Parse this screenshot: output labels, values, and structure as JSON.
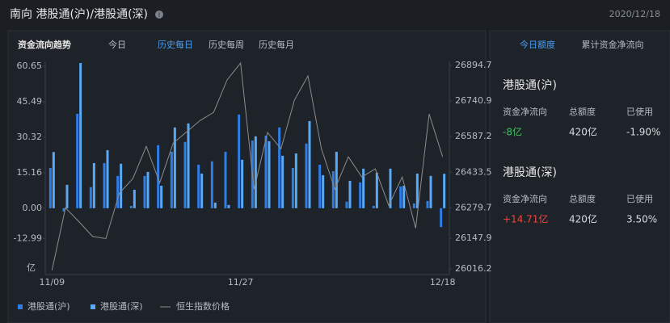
{
  "header": {
    "title": "南向 港股通(沪)/港股通(深)",
    "date": "2020/12/18"
  },
  "chart_tabs": {
    "title": "资金流向趋势",
    "tabs": [
      "今日",
      "历史每日",
      "历史每周",
      "历史每月"
    ],
    "active": 1,
    "active_color": "#4a9ff5"
  },
  "chart_data": {
    "type": "bar",
    "categories": [
      "11/09",
      null,
      null,
      null,
      null,
      null,
      null,
      null,
      null,
      null,
      null,
      null,
      null,
      null,
      "11/27",
      null,
      null,
      null,
      null,
      null,
      null,
      null,
      null,
      null,
      null,
      null,
      null,
      null,
      null,
      "12/18"
    ],
    "y_unit": "亿",
    "ylim": [
      -25.9,
      62.7
    ],
    "yticks": [
      -12.99,
      {
        "value": 0,
        "label": "0.00"
      },
      15.16,
      30.32,
      45.49,
      60.65
    ],
    "y2lim": [
      26016.2,
      26912
    ],
    "y2ticks": [
      26016.2,
      26147.9,
      26279.7,
      26433.5,
      26587.2,
      26740.9,
      26894.7
    ],
    "series": [
      {
        "name": "港股通(沪)",
        "color": "#2f7ee8",
        "values": [
          17.2,
          -1.4,
          40.3,
          9,
          19.3,
          13.8,
          1,
          13.8,
          26.9,
          24.1,
          28.3,
          18.6,
          20,
          24.1,
          40,
          28.9,
          31,
          34.5,
          17.2,
          27.6,
          18.6,
          15.8,
          2.8,
          11,
          1,
          0,
          9.3,
          2,
          3.1,
          -8
        ]
      },
      {
        "name": "港股通(深)",
        "color": "#5aa9f5",
        "values": [
          24,
          10,
          62,
          19.3,
          24.8,
          19,
          7.9,
          15.5,
          9.6,
          34.5,
          36.2,
          14.8,
          2.4,
          1.4,
          20.7,
          30.7,
          28.6,
          22.4,
          23.4,
          37.2,
          14.1,
          24.1,
          11.7,
          16.9,
          15.2,
          16.9,
          9.6,
          14.8,
          13.8,
          14.71
        ]
      },
      {
        "name": "恒生指数价格",
        "color": "#8c8c8c",
        "type": "line",
        "axis": "y2",
        "values": [
          26010,
          26279.7,
          26220,
          26157,
          26147,
          26343,
          26406,
          26545,
          26388,
          26559,
          26608,
          26657,
          26692,
          26832,
          26905,
          26360,
          26605,
          26535,
          26745,
          26849,
          26535,
          26360,
          26500,
          26413,
          26448,
          26290,
          26413,
          26192,
          26685,
          26500
        ]
      }
    ]
  },
  "side_panel": {
    "tabs": [
      "今日额度",
      "累计资金净流向"
    ],
    "active": 0,
    "active_color": "#4a9ff5",
    "sections": [
      {
        "name": "港股通(沪)",
        "headers": [
          "资金净流向",
          "总额度",
          "已使用"
        ],
        "values": [
          "-8亿",
          "420亿",
          "-1.90%"
        ],
        "flow_color": "#3fbf5f"
      },
      {
        "name": "港股通(深)",
        "headers": [
          "资金净流向",
          "总额度",
          "已使用"
        ],
        "values": [
          "+14.71亿",
          "420亿",
          "3.50%"
        ],
        "flow_color": "#f0443c"
      }
    ]
  }
}
